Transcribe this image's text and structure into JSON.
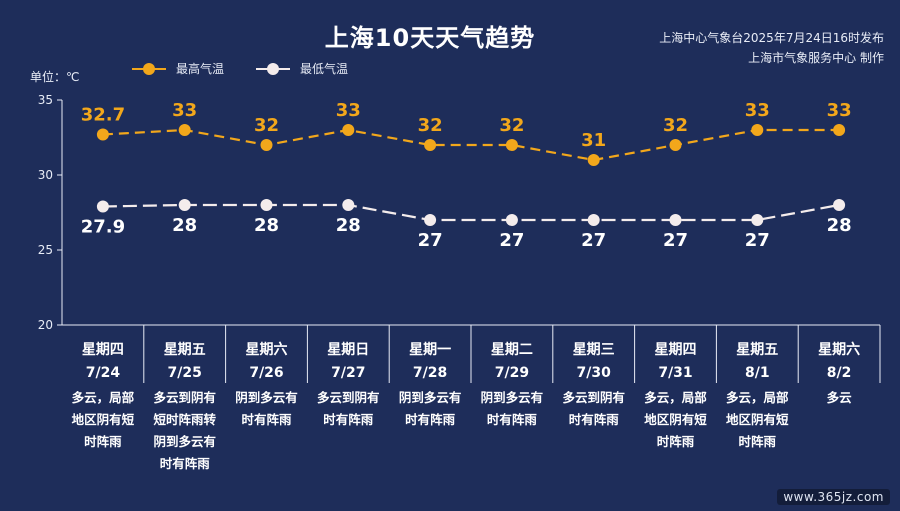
{
  "title": "上海10天天气趋势",
  "source_line1": "上海中心气象台2025年7月24日16时发布",
  "source_line2": "上海市气象服务中心 制作",
  "unit_label": "单位：℃",
  "watermark": "www.365jz.com",
  "colors": {
    "background": "#1e2d5a",
    "high": "#f2a71b",
    "low": "#f4ecec",
    "axis": "#e8ecf6"
  },
  "chart_data": {
    "type": "line",
    "ylim": [
      20,
      35
    ],
    "yticks": [
      20,
      25,
      30,
      35
    ],
    "grid": false,
    "legend_position": "top-left",
    "categories": [
      "7/24",
      "7/25",
      "7/26",
      "7/27",
      "7/28",
      "7/29",
      "7/30",
      "7/31",
      "8/1",
      "8/2"
    ],
    "weekdays": [
      "星期四",
      "星期五",
      "星期六",
      "星期日",
      "星期一",
      "星期二",
      "星期三",
      "星期四",
      "星期五",
      "星期六"
    ],
    "series": [
      {
        "name": "最高气温",
        "values": [
          32.7,
          33,
          32,
          33,
          32,
          32,
          31,
          32,
          33,
          33
        ]
      },
      {
        "name": "最低气温",
        "values": [
          27.9,
          28,
          28,
          28,
          27,
          27,
          27,
          27,
          27,
          28
        ]
      }
    ],
    "weather": [
      [
        "多云，局部",
        "地区阴有短",
        "时阵雨"
      ],
      [
        "多云到阴有",
        "短时阵雨转",
        "阴到多云有",
        "时有阵雨"
      ],
      [
        "阴到多云有",
        "时有阵雨"
      ],
      [
        "多云到阴有",
        "时有阵雨"
      ],
      [
        "阴到多云有",
        "时有阵雨"
      ],
      [
        "阴到多云有",
        "时有阵雨"
      ],
      [
        "多云到阴有",
        "时有阵雨"
      ],
      [
        "多云，局部",
        "地区阴有短",
        "时阵雨"
      ],
      [
        "多云，局部",
        "地区阴有短",
        "时阵雨"
      ],
      [
        "多云"
      ]
    ]
  }
}
